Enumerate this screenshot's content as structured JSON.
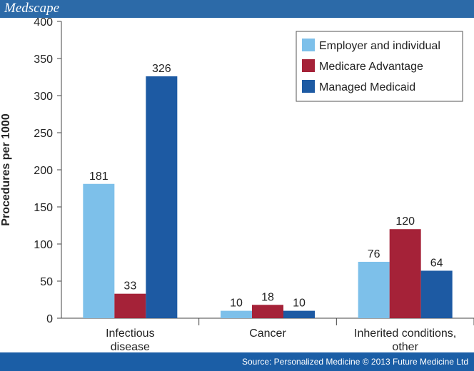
{
  "header": {
    "logo": "Medscape"
  },
  "chart_data": {
    "type": "bar",
    "ylabel": "Procedures per 1000",
    "categories": [
      "Infectious disease",
      "Cancer",
      "Inherited conditions, other"
    ],
    "series": [
      {
        "name": "Employer and individual",
        "color": "#7dc0ea",
        "values": [
          181,
          10,
          76
        ]
      },
      {
        "name": "Medicare Advantage",
        "color": "#a52238",
        "values": [
          33,
          18,
          120
        ]
      },
      {
        "name": "Managed Medicaid",
        "color": "#1d5aa3",
        "values": [
          326,
          10,
          64
        ]
      }
    ],
    "ylim": [
      0,
      400
    ],
    "yticks": [
      0,
      50,
      100,
      150,
      200,
      250,
      300,
      350,
      400
    ],
    "legend": "top-right"
  },
  "footer": {
    "source": "Source: Personalized Medicine © 2013 Future Medicine Ltd"
  }
}
